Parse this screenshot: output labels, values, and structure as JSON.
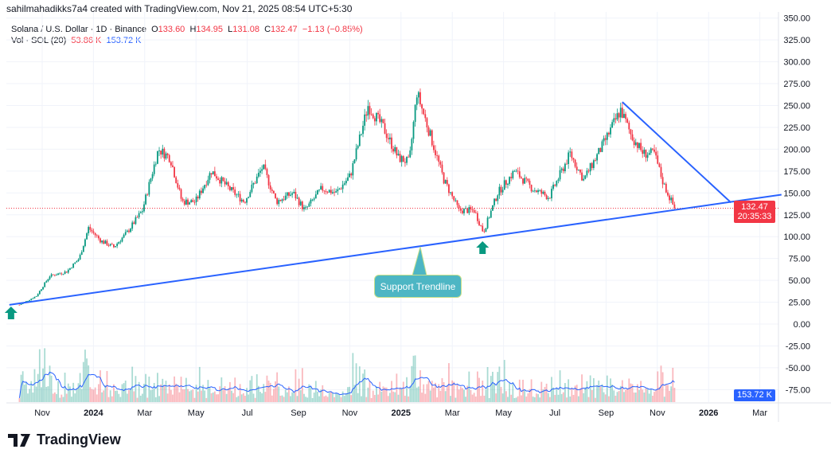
{
  "header": {
    "created_by": "sahilmahadikks7a4 created with TradingView.com, Nov 21, 2025 08:54 UTC+5:30"
  },
  "legend": {
    "symbol": "Solana / U.S. Dollar · 1D · Binance",
    "o_label": "O",
    "o": "133.60",
    "h_label": "H",
    "h": "134.95",
    "l_label": "L",
    "l": "131.08",
    "c_label": "C",
    "c": "132.47",
    "change": "−1.13 (−0.85%)",
    "vol_label": "Vol · SOL (20)",
    "vol": "53.86 K",
    "vol_ma": "153.72 K"
  },
  "price_tag": {
    "price": "132.47",
    "countdown": "20:35:33"
  },
  "volume_tag": "153.72 K",
  "annotation": {
    "text": "Support Trendline"
  },
  "logo": {
    "text": "TradingView"
  },
  "colors": {
    "up": "#089981",
    "down": "#f23645",
    "trend": "#2962ff",
    "note": "#4db6c4",
    "arrow": "#089981"
  },
  "chart_data": {
    "type": "candlestick",
    "y_ticks": [
      "350.00",
      "325.00",
      "300.00",
      "275.00",
      "250.00",
      "225.00",
      "200.00",
      "175.00",
      "150.00",
      "125.00",
      "100.00",
      "75.00",
      "50.00",
      "25.00",
      "0.00",
      "-25.00",
      "-50.00",
      "-75.00"
    ],
    "x_ticks": [
      "Nov",
      "2024",
      "Mar",
      "May",
      "Jul",
      "Sep",
      "Nov",
      "2025",
      "Mar",
      "May",
      "Jul",
      "Sep",
      "Nov",
      "2026",
      "Mar"
    ],
    "bold_ticks": [
      "2024",
      "2025",
      "2026"
    ],
    "approx_close": [
      [
        "2023-10-05",
        22
      ],
      [
        "2023-10-25",
        32
      ],
      [
        "2023-11-10",
        55
      ],
      [
        "2023-11-30",
        60
      ],
      [
        "2023-12-15",
        75
      ],
      [
        "2023-12-26",
        110
      ],
      [
        "2024-01-10",
        95
      ],
      [
        "2024-01-25",
        88
      ],
      [
        "2024-02-10",
        105
      ],
      [
        "2024-02-28",
        130
      ],
      [
        "2024-03-18",
        200
      ],
      [
        "2024-04-01",
        190
      ],
      [
        "2024-04-15",
        140
      ],
      [
        "2024-05-01",
        140
      ],
      [
        "2024-05-20",
        175
      ],
      [
        "2024-06-10",
        155
      ],
      [
        "2024-06-28",
        140
      ],
      [
        "2024-07-20",
        180
      ],
      [
        "2024-08-05",
        140
      ],
      [
        "2024-08-25",
        150
      ],
      [
        "2024-09-08",
        130
      ],
      [
        "2024-09-28",
        155
      ],
      [
        "2024-10-15",
        150
      ],
      [
        "2024-11-01",
        170
      ],
      [
        "2024-11-22",
        250
      ],
      [
        "2024-12-10",
        225
      ],
      [
        "2024-12-28",
        190
      ],
      [
        "2025-01-10",
        185
      ],
      [
        "2025-01-19",
        265
      ],
      [
        "2025-02-01",
        225
      ],
      [
        "2025-02-20",
        165
      ],
      [
        "2025-03-10",
        130
      ],
      [
        "2025-03-28",
        130
      ],
      [
        "2025-04-08",
        105
      ],
      [
        "2025-04-25",
        150
      ],
      [
        "2025-05-15",
        175
      ],
      [
        "2025-06-05",
        155
      ],
      [
        "2025-06-25",
        145
      ],
      [
        "2025-07-20",
        195
      ],
      [
        "2025-08-05",
        165
      ],
      [
        "2025-08-28",
        205
      ],
      [
        "2025-09-18",
        245
      ],
      [
        "2025-10-01",
        215
      ],
      [
        "2025-10-15",
        195
      ],
      [
        "2025-10-28",
        195
      ],
      [
        "2025-11-08",
        160
      ],
      [
        "2025-11-21",
        132.47
      ]
    ],
    "last_price": 132.47,
    "support_trendline": [
      [
        "2023-09-23",
        22
      ],
      [
        "2026-03-28",
        148
      ]
    ],
    "resistance_trendline": [
      [
        "2025-09-20",
        254
      ],
      [
        "2026-01-27",
        139
      ]
    ],
    "arrows": [
      [
        "2023-09-25",
        "low"
      ],
      [
        "2025-04-07",
        "low"
      ]
    ]
  }
}
